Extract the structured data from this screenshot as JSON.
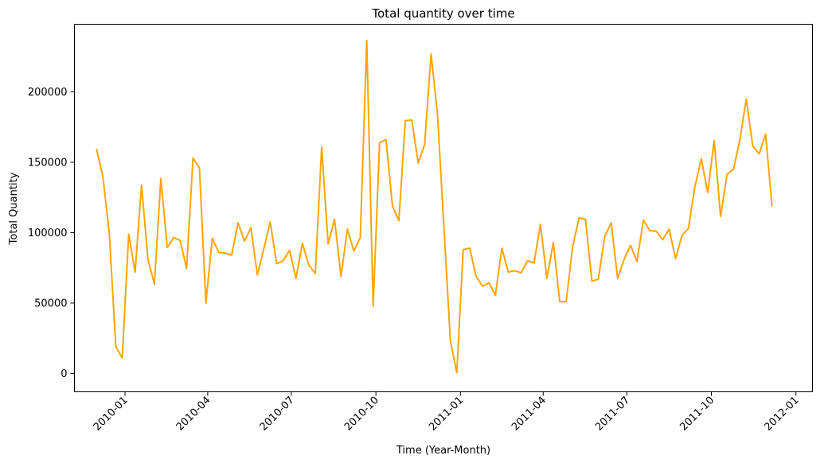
{
  "chart_data": {
    "type": "line",
    "title": "Total quantity over time",
    "xlabel": "Time (Year-Month)",
    "ylabel": "Total Quantity",
    "x_tick_labels": [
      "2010-01",
      "2010-04",
      "2010-07",
      "2010-10",
      "2011-01",
      "2011-04",
      "2011-07",
      "2011-10",
      "2012-01"
    ],
    "y_tick_labels": [
      "0",
      "50000",
      "100000",
      "150000",
      "200000"
    ],
    "y_ticks": [
      0,
      50000,
      100000,
      150000,
      200000
    ],
    "ylim": [
      -13000,
      248000
    ],
    "xlim": [
      "2009-11-07",
      "2012-01-19"
    ],
    "grid": false,
    "series": [
      {
        "color": "#FFA500",
        "x": [
          "2009-12-01",
          "2009-12-08",
          "2009-12-15",
          "2009-12-22",
          "2009-12-29",
          "2010-01-05",
          "2010-01-12",
          "2010-01-19",
          "2010-01-26",
          "2010-02-02",
          "2010-02-09",
          "2010-02-16",
          "2010-02-23",
          "2010-03-02",
          "2010-03-09",
          "2010-03-16",
          "2010-03-23",
          "2010-03-30",
          "2010-04-06",
          "2010-04-13",
          "2010-04-20",
          "2010-04-27",
          "2010-05-04",
          "2010-05-11",
          "2010-05-18",
          "2010-05-25",
          "2010-06-01",
          "2010-06-08",
          "2010-06-15",
          "2010-06-22",
          "2010-06-29",
          "2010-07-06",
          "2010-07-13",
          "2010-07-20",
          "2010-07-27",
          "2010-08-03",
          "2010-08-10",
          "2010-08-17",
          "2010-08-24",
          "2010-08-31",
          "2010-09-07",
          "2010-09-14",
          "2010-09-21",
          "2010-09-28",
          "2010-10-05",
          "2010-10-12",
          "2010-10-19",
          "2010-10-26",
          "2010-11-02",
          "2010-11-09",
          "2010-11-16",
          "2010-11-23",
          "2010-11-30",
          "2010-12-07",
          "2010-12-14",
          "2010-12-21",
          "2010-12-28",
          "2011-01-04",
          "2011-01-11",
          "2011-01-18",
          "2011-01-25",
          "2011-02-01",
          "2011-02-08",
          "2011-02-15",
          "2011-02-22",
          "2011-03-01",
          "2011-03-08",
          "2011-03-15",
          "2011-03-22",
          "2011-03-29",
          "2011-04-05",
          "2011-04-12",
          "2011-04-19",
          "2011-04-26",
          "2011-05-03",
          "2011-05-10",
          "2011-05-17",
          "2011-05-24",
          "2011-05-31",
          "2011-06-07",
          "2011-06-14",
          "2011-06-21",
          "2011-06-28",
          "2011-07-05",
          "2011-07-12",
          "2011-07-19",
          "2011-07-26",
          "2011-08-02",
          "2011-08-09",
          "2011-08-16",
          "2011-08-23",
          "2011-08-30",
          "2011-09-06",
          "2011-09-13",
          "2011-09-20",
          "2011-09-27",
          "2011-10-04",
          "2011-10-11",
          "2011-10-18",
          "2011-10-25",
          "2011-11-01",
          "2011-11-08",
          "2011-11-15",
          "2011-11-22",
          "2011-11-29",
          "2011-12-06"
        ],
        "y": [
          159500,
          139500,
          99000,
          19000,
          11000,
          99000,
          72000,
          133800,
          81000,
          63500,
          138500,
          89500,
          96500,
          94500,
          74500,
          153000,
          146000,
          50000,
          96000,
          86000,
          85500,
          84000,
          107000,
          94000,
          103500,
          70000,
          88500,
          107500,
          78000,
          80000,
          87500,
          67500,
          92500,
          77000,
          71000,
          161000,
          92000,
          109500,
          69000,
          102500,
          87000,
          96500,
          236500,
          48000,
          164000,
          166000,
          119000,
          108500,
          179500,
          180000,
          149500,
          162500,
          227000,
          184000,
          104000,
          23500,
          500,
          88000,
          89000,
          69000,
          62000,
          64500,
          55500,
          89000,
          72000,
          73000,
          71500,
          80000,
          78500,
          106000,
          67500,
          93000,
          51000,
          51000,
          90000,
          110500,
          109500,
          65500,
          67000,
          97500,
          107000,
          67500,
          81000,
          91000,
          79500,
          109000,
          101500,
          101000,
          95000,
          102500,
          81500,
          98000,
          103000,
          132500,
          152500,
          128500,
          165500,
          111500,
          141500,
          145000,
          166000,
          195000,
          161500,
          156000,
          170000,
          118500
        ]
      }
    ]
  }
}
